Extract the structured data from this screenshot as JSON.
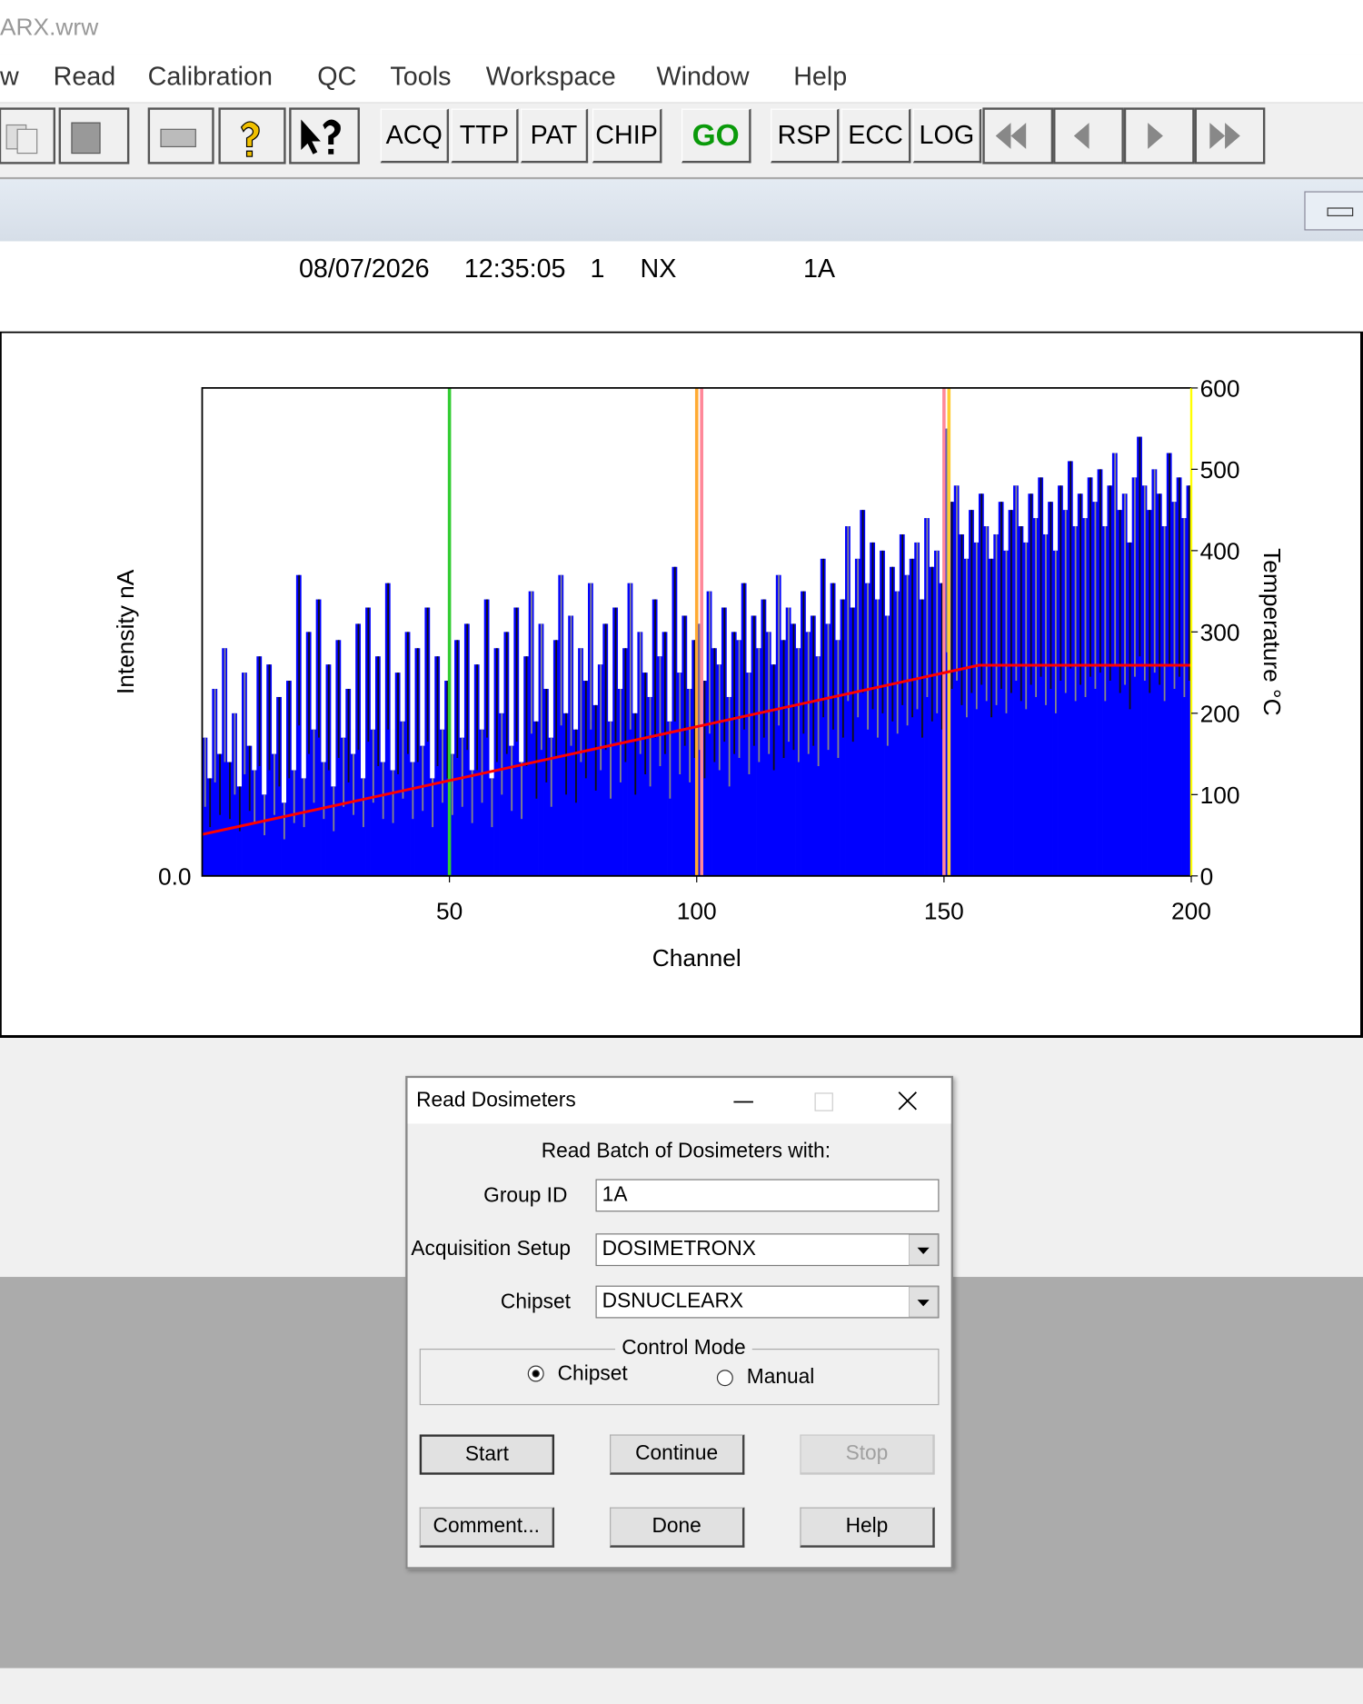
{
  "window_title": "ARX.wrw",
  "menu": [
    "w",
    "Read",
    "Calibration",
    "QC",
    "Tools",
    "Workspace",
    "Window",
    "Help"
  ],
  "toolbar": {
    "buttons": [
      "ACQ",
      "TTP",
      "PAT",
      "CHIP",
      "GO",
      "RSP",
      "ECC",
      "LOG"
    ]
  },
  "info": [
    "08/07/2026",
    "12:35:05",
    "1",
    "NX",
    "1A"
  ],
  "chart_data": {
    "type": "bar",
    "y_label": "Intensity nA",
    "y2_label": "Temperature °C",
    "x_label": "Channel",
    "xlim": [
      0,
      200
    ],
    "xticks": [
      50,
      100,
      150,
      200
    ],
    "ylim": [
      0,
      600
    ],
    "yticks": [
      {
        "value": 0,
        "label": "0.0"
      }
    ],
    "y2lim": [
      0,
      600
    ],
    "y2ticks": [
      0,
      100,
      200,
      300,
      400,
      500,
      600
    ],
    "color": "#0000ff",
    "x": [
      1,
      2,
      3,
      4,
      5,
      6,
      7,
      8,
      9,
      10,
      11,
      12,
      13,
      14,
      15,
      16,
      17,
      18,
      19,
      20,
      21,
      22,
      23,
      24,
      25,
      26,
      27,
      28,
      29,
      30,
      31,
      32,
      33,
      34,
      35,
      36,
      37,
      38,
      39,
      40,
      41,
      42,
      43,
      44,
      45,
      46,
      47,
      48,
      49,
      50,
      51,
      52,
      53,
      54,
      55,
      56,
      57,
      58,
      59,
      60,
      61,
      62,
      63,
      64,
      65,
      66,
      67,
      68,
      69,
      70,
      71,
      72,
      73,
      74,
      75,
      76,
      77,
      78,
      79,
      80,
      81,
      82,
      83,
      84,
      85,
      86,
      87,
      88,
      89,
      90,
      91,
      92,
      93,
      94,
      95,
      96,
      97,
      98,
      99,
      100,
      101,
      102,
      103,
      104,
      105,
      106,
      107,
      108,
      109,
      110,
      111,
      112,
      113,
      114,
      115,
      116,
      117,
      118,
      119,
      120,
      121,
      122,
      123,
      124,
      125,
      126,
      127,
      128,
      129,
      130,
      131,
      132,
      133,
      134,
      135,
      136,
      137,
      138,
      139,
      140,
      141,
      142,
      143,
      144,
      145,
      146,
      147,
      148,
      149,
      150,
      151,
      152,
      153,
      154,
      155,
      156,
      157,
      158,
      159,
      160,
      161,
      162,
      163,
      164,
      165,
      166,
      167,
      168,
      169,
      170,
      171,
      172,
      173,
      174,
      175,
      176,
      177,
      178,
      179,
      180,
      181,
      182,
      183,
      184,
      185,
      186,
      187,
      188,
      189,
      190,
      191,
      192,
      193,
      194,
      195,
      196,
      197,
      198,
      199,
      200
    ],
    "values": [
      170,
      120,
      230,
      150,
      280,
      140,
      200,
      110,
      250,
      160,
      130,
      270,
      100,
      260,
      150,
      220,
      90,
      240,
      130,
      370,
      120,
      300,
      180,
      340,
      140,
      260,
      110,
      290,
      170,
      230,
      150,
      310,
      120,
      330,
      180,
      270,
      140,
      360,
      130,
      250,
      190,
      300,
      140,
      280,
      160,
      330,
      120,
      270,
      180,
      240,
      150,
      290,
      170,
      310,
      130,
      260,
      180,
      340,
      120,
      280,
      200,
      300,
      160,
      330,
      140,
      270,
      350,
      190,
      310,
      230,
      170,
      290,
      370,
      200,
      320,
      180,
      280,
      240,
      360,
      210,
      260,
      310,
      190,
      330,
      230,
      280,
      360,
      200,
      300,
      250,
      220,
      340,
      270,
      300,
      190,
      380,
      250,
      320,
      230,
      290,
      310,
      240,
      350,
      280,
      260,
      330,
      220,
      300,
      290,
      360,
      250,
      320,
      280,
      340,
      300,
      260,
      370,
      290,
      330,
      310,
      280,
      350,
      300,
      320,
      270,
      390,
      310,
      360,
      290,
      340,
      430,
      330,
      390,
      450,
      360,
      410,
      340,
      400,
      320,
      380,
      350,
      420,
      370,
      390,
      410,
      340,
      440,
      380,
      400,
      360,
      550,
      460,
      480,
      420,
      390,
      450,
      410,
      470,
      430,
      390,
      420,
      460,
      400,
      450,
      480,
      430,
      410,
      470,
      440,
      490,
      420,
      460,
      400,
      480,
      450,
      510,
      430,
      470,
      440,
      490,
      460,
      500,
      430,
      480,
      520,
      450,
      470,
      410,
      490,
      540,
      480,
      450,
      500,
      470,
      430,
      520,
      460,
      490,
      440,
      480
    ],
    "temperature": {
      "axis": "y2",
      "color": "#ff0000",
      "x": [
        0,
        157,
        200
      ],
      "values": [
        51,
        259,
        259
      ]
    },
    "markers": [
      {
        "x": 50,
        "color": "#33cc33"
      },
      {
        "x": 100,
        "color": "#ffaa33"
      },
      {
        "x": 101,
        "color": "#ff8899"
      },
      {
        "x": 150,
        "color": "#ff8899"
      },
      {
        "x": 151,
        "color": "#ffcc33"
      }
    ]
  },
  "dialog": {
    "title": "Read Dosimeters",
    "heading": "Read Batch of Dosimeters with:",
    "fields": [
      {
        "label": "Group ID",
        "value": "1A"
      },
      {
        "label": "Acquisition Setup",
        "value": "DOSIMETRONX"
      },
      {
        "label": "Chipset",
        "value": "DSNUCLEARX"
      }
    ],
    "control_mode": {
      "title": "Control Mode",
      "options": [
        "Chipset",
        "Manual"
      ],
      "selected": 0
    },
    "buttons": [
      "Start",
      "Continue",
      "Stop",
      "Comment...",
      "Done",
      "Help"
    ],
    "disabled": [
      2
    ]
  }
}
